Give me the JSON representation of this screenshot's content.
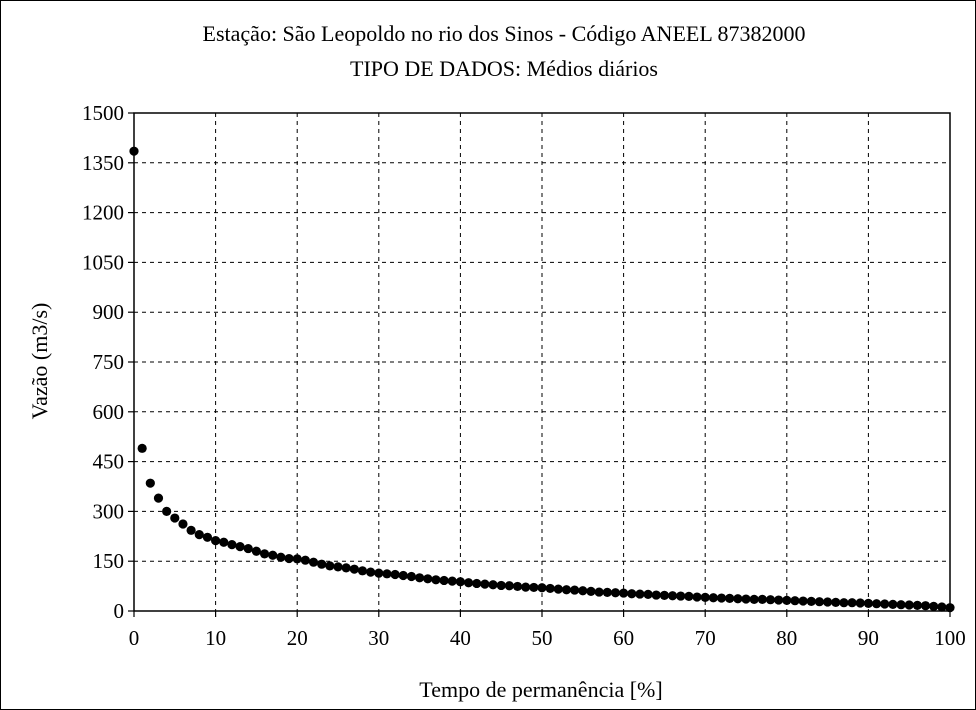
{
  "chart_data": {
    "type": "scatter",
    "title": "Estação: São Leopoldo no rio dos Sinos - Código ANEEL 87382000",
    "subtitle": "TIPO DE DADOS: Médios diários",
    "xlabel": "Tempo de permanência [%]",
    "ylabel": "Vazão (m3/s)",
    "xlim": [
      0,
      100
    ],
    "ylim": [
      0,
      1500
    ],
    "xticks": [
      "0",
      "10",
      "20",
      "30",
      "40",
      "50",
      "60",
      "70",
      "80",
      "90",
      "100"
    ],
    "yticks": [
      "0",
      "150",
      "300",
      "450",
      "600",
      "750",
      "900",
      "1050",
      "1200",
      "1350",
      "1500"
    ],
    "grid": true,
    "marker_color": "#000000",
    "x": [
      0,
      1,
      2,
      3,
      4,
      5,
      6,
      7,
      8,
      9,
      10,
      11,
      12,
      13,
      14,
      15,
      16,
      17,
      18,
      19,
      20,
      21,
      22,
      23,
      24,
      25,
      26,
      27,
      28,
      29,
      30,
      31,
      32,
      33,
      34,
      35,
      36,
      37,
      38,
      39,
      40,
      41,
      42,
      43,
      44,
      45,
      46,
      47,
      48,
      49,
      50,
      51,
      52,
      53,
      54,
      55,
      56,
      57,
      58,
      59,
      60,
      61,
      62,
      63,
      64,
      65,
      66,
      67,
      68,
      69,
      70,
      71,
      72,
      73,
      74,
      75,
      76,
      77,
      78,
      79,
      80,
      81,
      82,
      83,
      84,
      85,
      86,
      87,
      88,
      89,
      90,
      91,
      92,
      93,
      94,
      95,
      96,
      97,
      98,
      99,
      100
    ],
    "y": [
      1385,
      490,
      385,
      340,
      300,
      280,
      262,
      243,
      230,
      222,
      212,
      207,
      200,
      194,
      188,
      180,
      172,
      168,
      162,
      158,
      157,
      153,
      147,
      141,
      136,
      133,
      130,
      126,
      121,
      117,
      114,
      112,
      110,
      107,
      104,
      100,
      97,
      94,
      92,
      90,
      88,
      85,
      83,
      81,
      79,
      77,
      76,
      74,
      72,
      71,
      70,
      68,
      66,
      64,
      63,
      61,
      59,
      57,
      56,
      55,
      54,
      52,
      51,
      50,
      48,
      47,
      46,
      45,
      44,
      42,
      41,
      40,
      39,
      38,
      37,
      36,
      35,
      35,
      34,
      33,
      32,
      31,
      30,
      29,
      28,
      27,
      26,
      25,
      25,
      24,
      23,
      22,
      21,
      20,
      19,
      18,
      17,
      16,
      14,
      12,
      10
    ]
  }
}
